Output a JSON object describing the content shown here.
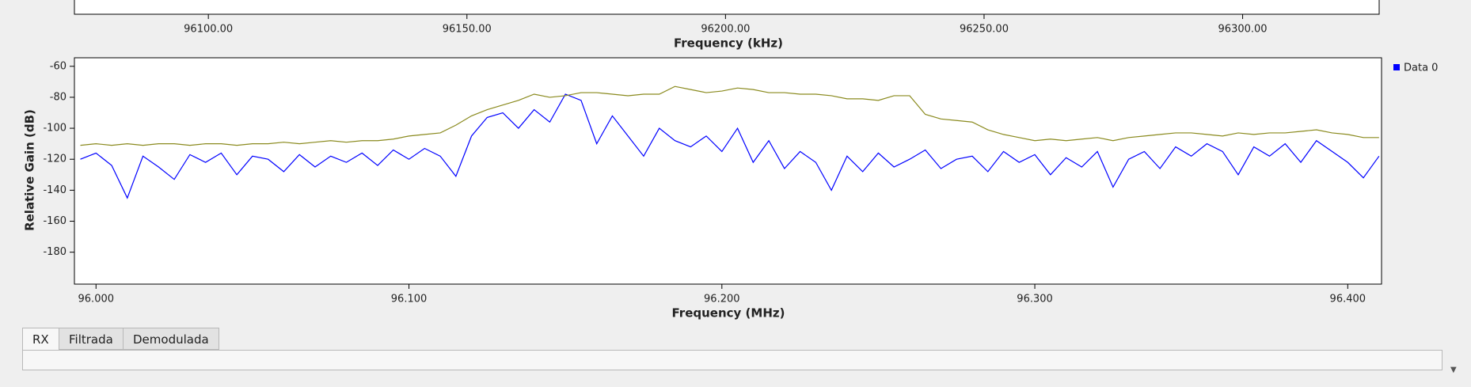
{
  "chart_data": [
    {
      "type": "line",
      "x_label": "Frequency (kHz)",
      "xlim": [
        96074.1,
        96326.4
      ],
      "xticks": [
        {
          "value": 96100,
          "label": "96100.00"
        },
        {
          "value": 96150,
          "label": "96150.00"
        },
        {
          "value": 96200,
          "label": "96200.00"
        },
        {
          "value": 96250,
          "label": "96250.00"
        },
        {
          "value": 96300,
          "label": "96300.00"
        }
      ]
    },
    {
      "type": "line",
      "x_label": "Frequency (MHz)",
      "y_label": "Relative Gain (dB)",
      "xlim": [
        95.9931,
        96.4108
      ],
      "ylim": [
        -200.6,
        -54.5
      ],
      "xticks": [
        {
          "value": 96.0,
          "label": "96.000"
        },
        {
          "value": 96.1,
          "label": "96.100"
        },
        {
          "value": 96.2,
          "label": "96.200"
        },
        {
          "value": 96.3,
          "label": "96.300"
        },
        {
          "value": 96.4,
          "label": "96.400"
        }
      ],
      "yticks": [
        -60,
        -80,
        -100,
        -120,
        -140,
        -160,
        -180
      ],
      "x": [
        95.995,
        96.0,
        96.005,
        96.01,
        96.015,
        96.02,
        96.025,
        96.03,
        96.035,
        96.04,
        96.045,
        96.05,
        96.055,
        96.06,
        96.065,
        96.07,
        96.075,
        96.08,
        96.085,
        96.09,
        96.095,
        96.1,
        96.105,
        96.11,
        96.115,
        96.12,
        96.125,
        96.13,
        96.135,
        96.14,
        96.145,
        96.15,
        96.155,
        96.16,
        96.165,
        96.17,
        96.175,
        96.18,
        96.185,
        96.19,
        96.195,
        96.2,
        96.205,
        96.21,
        96.215,
        96.22,
        96.225,
        96.23,
        96.235,
        96.24,
        96.245,
        96.25,
        96.255,
        96.26,
        96.265,
        96.27,
        96.275,
        96.28,
        96.285,
        96.29,
        96.295,
        96.3,
        96.305,
        96.31,
        96.315,
        96.32,
        96.325,
        96.33,
        96.335,
        96.34,
        96.345,
        96.35,
        96.355,
        96.36,
        96.365,
        96.37,
        96.375,
        96.38,
        96.385,
        96.39,
        96.395,
        96.4,
        96.405,
        96.41
      ],
      "series": [
        {
          "name": "Data 0",
          "color": "#0000ff",
          "values": [
            -120,
            -116,
            -124,
            -145,
            -118,
            -125,
            -133,
            -117,
            -122,
            -116,
            -130,
            -118,
            -120,
            -128,
            -117,
            -125,
            -118,
            -122,
            -116,
            -124,
            -114,
            -120,
            -113,
            -118,
            -131,
            -105,
            -93,
            -90,
            -100,
            -88,
            -96,
            -78,
            -82,
            -110,
            -92,
            -105,
            -118,
            -100,
            -108,
            -112,
            -105,
            -115,
            -100,
            -122,
            -108,
            -126,
            -115,
            -122,
            -140,
            -118,
            -128,
            -116,
            -125,
            -120,
            -114,
            -126,
            -120,
            -118,
            -128,
            -115,
            -122,
            -117,
            -130,
            -119,
            -125,
            -115,
            -138,
            -120,
            -115,
            -126,
            -112,
            -118,
            -110,
            -115,
            -130,
            -112,
            -118,
            -110,
            -122,
            -108,
            -115,
            -122,
            -132,
            -118
          ]
        },
        {
          "color": "#8a8a1e",
          "values": [
            -111,
            -110,
            -111,
            -110,
            -111,
            -110,
            -110,
            -111,
            -110,
            -110,
            -111,
            -110,
            -110,
            -109,
            -110,
            -109,
            -108,
            -109,
            -108,
            -108,
            -107,
            -105,
            -104,
            -103,
            -98,
            -92,
            -88,
            -85,
            -82,
            -78,
            -80,
            -79,
            -77,
            -77,
            -78,
            -79,
            -78,
            -78,
            -73,
            -75,
            -77,
            -76,
            -74,
            -75,
            -77,
            -77,
            -78,
            -78,
            -79,
            -81,
            -81,
            -82,
            -79,
            -79,
            -91,
            -94,
            -95,
            -96,
            -101,
            -104,
            -106,
            -108,
            -107,
            -108,
            -107,
            -106,
            -108,
            -106,
            -105,
            -104,
            -103,
            -103,
            -104,
            -105,
            -103,
            -104,
            -103,
            -103,
            -102,
            -101,
            -103,
            -104,
            -106,
            -106
          ]
        }
      ]
    }
  ],
  "tabs": [
    "RX",
    "Filtrada",
    "Demodulada"
  ]
}
